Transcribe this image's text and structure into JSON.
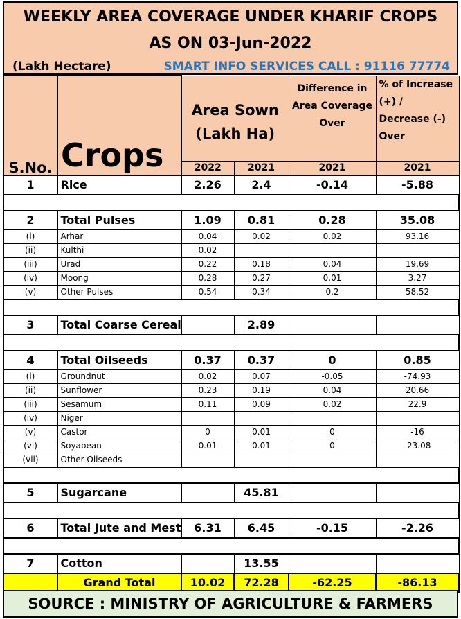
{
  "header": {
    "title_line1": "WEEKLY AREA COVERAGE UNDER KHARIF CROPS",
    "title_line2": "AS ON 03-Jun-2022",
    "unit": "(Lakh Hectare)",
    "contact": "SMART INFO SERVICES CALL : 91116 77774"
  },
  "columns": {
    "sno": "S.No.",
    "crops": "Crops",
    "area": "Area Sown (Lakh Ha)",
    "diff": "Difference in Area Coverage Over",
    "pct": "% of Increase (+) / Decrease (-) Over",
    "y2022": "2022",
    "y2021": "2021",
    "diff_year": "2021",
    "pct_year": "2021"
  },
  "groups": [
    {
      "sno": "1",
      "name": "Rice",
      "a2022": "2.26",
      "a2021": "2.4",
      "diff": "-0.14",
      "pct": "-5.88",
      "items": []
    },
    {
      "sno": "2",
      "name": "Total Pulses",
      "a2022": "1.09",
      "a2021": "0.81",
      "diff": "0.28",
      "pct": "35.08",
      "items": [
        {
          "sno": "(i)",
          "name": "Arhar",
          "a2022": "0.04",
          "a2021": "0.02",
          "diff": "0.02",
          "pct": "93.16"
        },
        {
          "sno": "(ii)",
          "name": "Kulthi",
          "a2022": "0.02",
          "a2021": "",
          "diff": "",
          "pct": ""
        },
        {
          "sno": "(iii)",
          "name": "Urad",
          "a2022": "0.22",
          "a2021": "0.18",
          "diff": "0.04",
          "pct": "19.69"
        },
        {
          "sno": "(iv)",
          "name": "Moong",
          "a2022": "0.28",
          "a2021": "0.27",
          "diff": "0.01",
          "pct": "3.27"
        },
        {
          "sno": "(v)",
          "name": "Other Pulses",
          "a2022": "0.54",
          "a2021": "0.34",
          "diff": "0.2",
          "pct": "58.52"
        }
      ]
    },
    {
      "sno": "3",
      "name": "Total Coarse Cereals",
      "a2022": "",
      "a2021": "2.89",
      "diff": "",
      "pct": "",
      "items": []
    },
    {
      "sno": "4",
      "name": "Total Oilseeds",
      "a2022": "0.37",
      "a2021": "0.37",
      "diff": "0",
      "pct": "0.85",
      "items": [
        {
          "sno": "(i)",
          "name": "Groundnut",
          "a2022": "0.02",
          "a2021": "0.07",
          "diff": "-0.05",
          "pct": "-74.93"
        },
        {
          "sno": "(ii)",
          "name": "Sunflower",
          "a2022": "0.23",
          "a2021": "0.19",
          "diff": "0.04",
          "pct": "20.66"
        },
        {
          "sno": "(iii)",
          "name": "Sesamum",
          "a2022": "0.11",
          "a2021": "0.09",
          "diff": "0.02",
          "pct": "22.9"
        },
        {
          "sno": "(iv)",
          "name": "Niger",
          "a2022": "",
          "a2021": "",
          "diff": "",
          "pct": ""
        },
        {
          "sno": "(v)",
          "name": "Castor",
          "a2022": "0",
          "a2021": "0.01",
          "diff": "0",
          "pct": "-16"
        },
        {
          "sno": "(vi)",
          "name": "Soyabean",
          "a2022": "0.01",
          "a2021": "0.01",
          "diff": "0",
          "pct": "-23.08"
        },
        {
          "sno": "(vii)",
          "name": "Other Oilseeds",
          "a2022": "",
          "a2021": "",
          "diff": "",
          "pct": ""
        }
      ]
    },
    {
      "sno": "5",
      "name": "Sugarcane",
      "a2022": "",
      "a2021": "45.81",
      "diff": "",
      "pct": "",
      "items": []
    },
    {
      "sno": "6",
      "name": "Total Jute and Mesta",
      "a2022": "6.31",
      "a2021": "6.45",
      "diff": "-0.15",
      "pct": "-2.26",
      "items": []
    },
    {
      "sno": "7",
      "name": "Cotton",
      "a2022": "",
      "a2021": "13.55",
      "diff": "",
      "pct": "",
      "items": []
    }
  ],
  "grand_total": {
    "label": "Grand Total",
    "a2022": "10.02",
    "a2021": "72.28",
    "diff": "-62.25",
    "pct": "-86.13"
  },
  "source": "SOURCE : MINISTRY OF AGRICULTURE & FARMERS",
  "colors": {
    "header_bg": "#f8cbad",
    "contact_text": "#2e75b6",
    "grand_total_bg": "#ffff00",
    "source_bg": "#e2efd9"
  }
}
